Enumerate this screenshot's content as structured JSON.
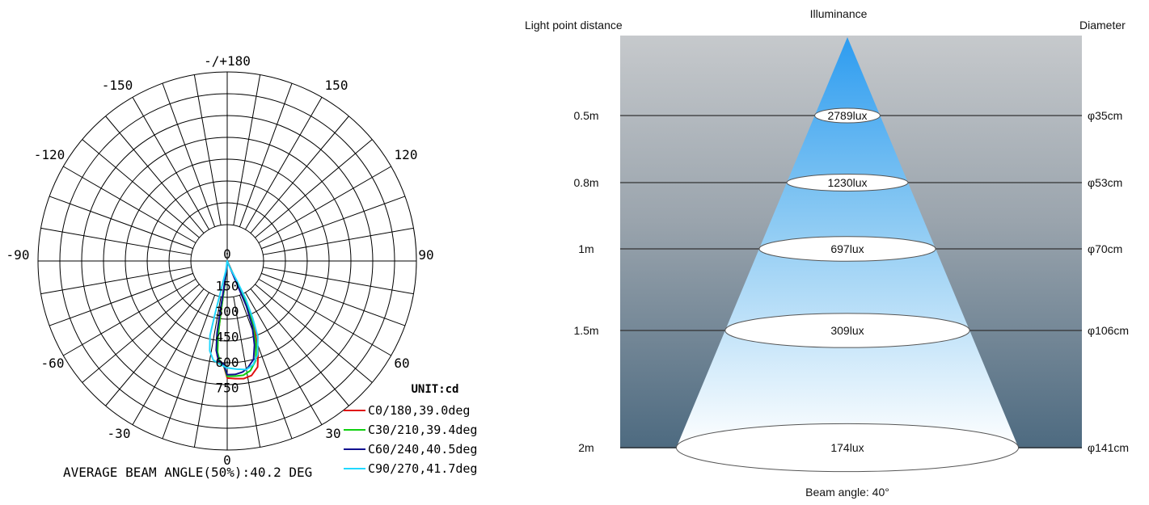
{
  "polar": {
    "angle_labels": [
      "-/+180",
      "150",
      "-150",
      "120",
      "-120",
      "90",
      "-90",
      "60",
      "-60",
      "30",
      "-30",
      "0"
    ],
    "radial_labels": [
      "0",
      "150",
      "300",
      "450",
      "600",
      "750"
    ],
    "unit": "UNIT:cd",
    "legend": [
      {
        "label": "C0/180,39.0deg",
        "color": "#e01010"
      },
      {
        "label": "C30/210,39.4deg",
        "color": "#10d010"
      },
      {
        "label": "C60/240,40.5deg",
        "color": "#101090"
      },
      {
        "label": "C90/270,41.7deg",
        "color": "#20d8ff"
      }
    ],
    "average_beam": "AVERAGE BEAM ANGLE(50%):40.2 DEG"
  },
  "chart_data": {
    "type": "polar",
    "unit": "cd",
    "r_ticks": [
      0,
      150,
      300,
      450,
      600,
      750
    ],
    "angle_ticks": [
      180,
      150,
      120,
      90,
      60,
      30,
      0,
      -30,
      -60,
      -90,
      -120,
      -150
    ],
    "series": [
      {
        "name": "C0/180,39.0deg",
        "color": "#e01010",
        "points": [
          [
            0,
            690
          ],
          [
            4,
            695
          ],
          [
            8,
            700
          ],
          [
            12,
            690
          ],
          [
            16,
            650
          ],
          [
            19,
            560
          ],
          [
            22,
            430
          ],
          [
            24,
            300
          ],
          [
            25,
            170
          ],
          [
            25,
            60
          ],
          [
            0,
            0
          ],
          [
            -4,
            40
          ],
          [
            -6,
            150
          ],
          [
            -7,
            300
          ],
          [
            -7,
            450
          ],
          [
            -6,
            560
          ],
          [
            -4,
            610
          ],
          [
            -2,
            615
          ],
          [
            0,
            690
          ]
        ]
      },
      {
        "name": "C30/210,39.4deg",
        "color": "#10d010",
        "points": [
          [
            0,
            680
          ],
          [
            4,
            680
          ],
          [
            8,
            680
          ],
          [
            12,
            660
          ],
          [
            16,
            610
          ],
          [
            19,
            520
          ],
          [
            22,
            400
          ],
          [
            24,
            280
          ],
          [
            24,
            160
          ],
          [
            24,
            60
          ],
          [
            0,
            0
          ],
          [
            -4,
            40
          ],
          [
            -6,
            150
          ],
          [
            -7,
            300
          ],
          [
            -7,
            440
          ],
          [
            -6,
            540
          ],
          [
            -4,
            600
          ],
          [
            -2,
            612
          ],
          [
            0,
            680
          ]
        ]
      },
      {
        "name": "C60/240,40.5deg",
        "color": "#101090",
        "points": [
          [
            0,
            670
          ],
          [
            4,
            670
          ],
          [
            8,
            660
          ],
          [
            11,
            640
          ],
          [
            15,
            600
          ],
          [
            18,
            520
          ],
          [
            21,
            410
          ],
          [
            23,
            290
          ],
          [
            23,
            170
          ],
          [
            23,
            60
          ],
          [
            0,
            0
          ],
          [
            -4,
            40
          ],
          [
            -7,
            150
          ],
          [
            -8,
            300
          ],
          [
            -8,
            430
          ],
          [
            -7,
            530
          ],
          [
            -5,
            590
          ],
          [
            -2,
            608
          ],
          [
            0,
            670
          ]
        ]
      },
      {
        "name": "C90/270,41.7deg",
        "color": "#20d8ff",
        "points": [
          [
            0,
            630
          ],
          [
            5,
            640
          ],
          [
            10,
            650
          ],
          [
            14,
            630
          ],
          [
            18,
            580
          ],
          [
            22,
            480
          ],
          [
            24,
            370
          ],
          [
            26,
            250
          ],
          [
            26,
            130
          ],
          [
            22,
            40
          ],
          [
            0,
            0
          ],
          [
            -8,
            60
          ],
          [
            -12,
            180
          ],
          [
            -13,
            320
          ],
          [
            -13,
            450
          ],
          [
            -11,
            540
          ],
          [
            -8,
            590
          ],
          [
            -4,
            610
          ],
          [
            0,
            630
          ]
        ]
      }
    ]
  },
  "cone": {
    "header_left": "Light point distance",
    "header_center": "Illuminance",
    "header_right": "Diameter",
    "rows": [
      {
        "distance": "0.5m",
        "lux": "2789lux",
        "diameter": "φ35cm"
      },
      {
        "distance": "0.8m",
        "lux": "1230lux",
        "diameter": "φ53cm"
      },
      {
        "distance": "1m",
        "lux": "697lux",
        "diameter": "φ70cm"
      },
      {
        "distance": "1.5m",
        "lux": "309lux",
        "diameter": "φ106cm"
      },
      {
        "distance": "2m",
        "lux": "174lux",
        "diameter": "φ141cm"
      }
    ],
    "beam_angle": "Beam angle: 40°"
  }
}
